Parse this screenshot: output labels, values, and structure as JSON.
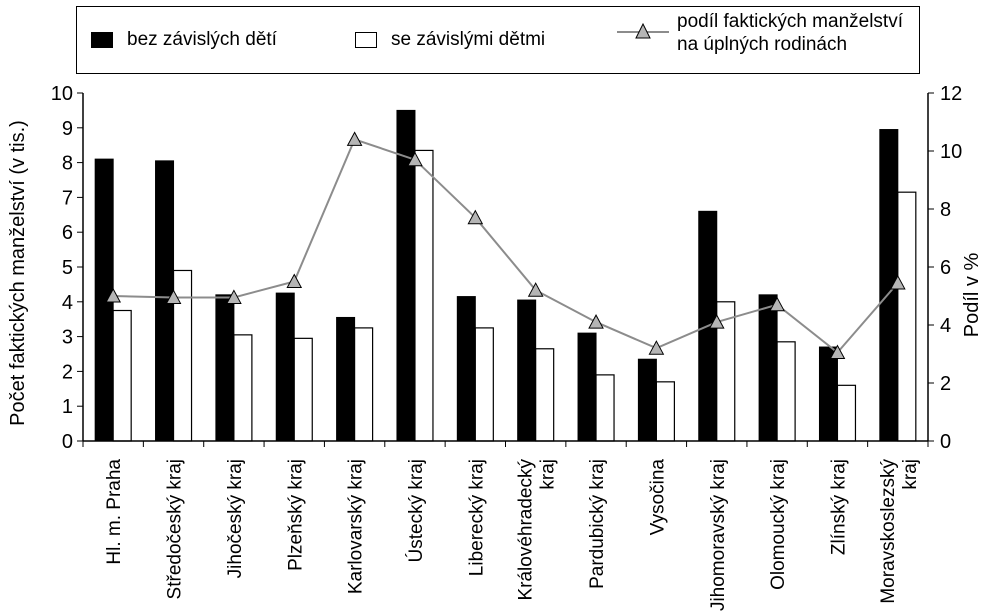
{
  "chart_data": {
    "type": "bar",
    "categories": [
      [
        "Hl. m. Praha"
      ],
      [
        "Středočeský kraj"
      ],
      [
        "Jihočeský kraj"
      ],
      [
        "Plzeňský kraj"
      ],
      [
        "Karlovarský kraj"
      ],
      [
        "Ústecký kraj"
      ],
      [
        "Liberecký kraj"
      ],
      [
        "Královéhradecký",
        "kraj"
      ],
      [
        "Pardubický kraj"
      ],
      [
        "Vysočina"
      ],
      [
        "Jihomoravský kraj"
      ],
      [
        "Olomoucký kraj"
      ],
      [
        "Zlínský kraj"
      ],
      [
        "Moravskoslezský",
        "kraj"
      ]
    ],
    "series": [
      {
        "name": "bez závislých dětí",
        "axis": "left",
        "style": "bar-filled",
        "color": "#000000",
        "values": [
          8.1,
          8.05,
          4.2,
          4.25,
          3.55,
          9.5,
          4.15,
          4.05,
          3.1,
          2.35,
          6.6,
          4.2,
          2.7,
          8.95
        ]
      },
      {
        "name": "se závislými dětmi",
        "axis": "left",
        "style": "bar-hollow",
        "color": "#ffffff",
        "values": [
          3.75,
          4.9,
          3.05,
          2.95,
          3.25,
          8.35,
          3.25,
          2.65,
          1.9,
          1.7,
          4.0,
          2.85,
          1.6,
          7.15
        ]
      },
      {
        "name_lines": [
          "podíl faktických manželství",
          "na úplných rodinách"
        ],
        "axis": "right",
        "style": "line-triangle",
        "color": "#8c8c8c",
        "values": [
          5.0,
          4.95,
          4.95,
          5.5,
          10.4,
          9.7,
          7.7,
          5.2,
          4.1,
          3.2,
          4.1,
          4.7,
          3.05,
          5.45
        ]
      }
    ],
    "y_left": {
      "label": "Počet faktických manželství (v tis.)",
      "min": 0,
      "max": 10,
      "ticks": [
        "0",
        "1",
        "2",
        "3",
        "4",
        "5",
        "6",
        "7",
        "8",
        "9",
        "10"
      ]
    },
    "y_right": {
      "label": "Podíl v %",
      "min": 0,
      "max": 12,
      "ticks": [
        "0",
        "2",
        "4",
        "6",
        "8",
        "10",
        "12"
      ]
    },
    "legend": "top",
    "grid": false
  }
}
